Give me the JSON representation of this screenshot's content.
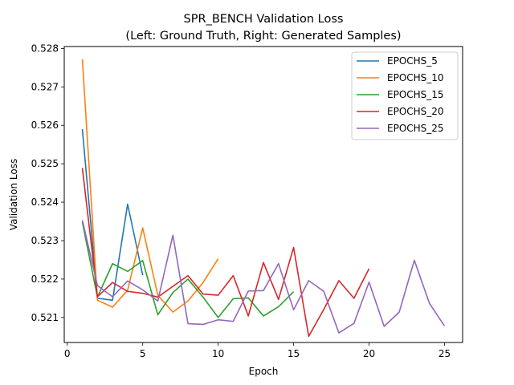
{
  "chart_data": {
    "type": "line",
    "title": "SPR_BENCH Validation Loss",
    "subtitle": "(Left: Ground Truth, Right: Generated Samples)",
    "xlabel": "Epoch",
    "ylabel": "Validation Loss",
    "xlim": [
      -0.2,
      26.2
    ],
    "ylim": [
      0.52035,
      0.52805
    ],
    "xticks": [
      0,
      5,
      10,
      15,
      20,
      25
    ],
    "yticks": [
      0.521,
      0.522,
      0.523,
      0.524,
      0.525,
      0.526,
      0.527,
      0.528
    ],
    "ytick_labels": [
      "0.521",
      "0.522",
      "0.523",
      "0.524",
      "0.525",
      "0.526",
      "0.527",
      "0.528"
    ],
    "grid": false,
    "legend_position": "top-right",
    "series": [
      {
        "name": "EPOCHS_5",
        "color": "#1f77b4",
        "x": [
          1,
          2,
          3,
          4,
          5
        ],
        "y": [
          0.5259,
          0.5215,
          0.52145,
          0.52395,
          0.5221
        ]
      },
      {
        "name": "EPOCHS_10",
        "color": "#ff7f0e",
        "x": [
          1,
          2,
          3,
          4,
          5,
          6,
          7,
          8,
          9,
          10
        ],
        "y": [
          0.52772,
          0.52145,
          0.52127,
          0.52171,
          0.52333,
          0.52158,
          0.52114,
          0.52143,
          0.52191,
          0.52253
        ]
      },
      {
        "name": "EPOCHS_15",
        "color": "#2ca02c",
        "x": [
          1,
          2,
          3,
          4,
          5,
          6,
          7,
          8,
          9,
          10,
          11,
          12,
          13,
          14,
          15
        ],
        "y": [
          0.52348,
          0.52153,
          0.5224,
          0.5222,
          0.52248,
          0.52107,
          0.52165,
          0.522,
          0.52153,
          0.521,
          0.52149,
          0.52151,
          0.52104,
          0.52128,
          0.52167
        ]
      },
      {
        "name": "EPOCHS_20",
        "color": "#d62728",
        "x": [
          1,
          2,
          3,
          4,
          5,
          6,
          7,
          8,
          9,
          10,
          11,
          12,
          13,
          14,
          15,
          16,
          17,
          18,
          19,
          20
        ],
        "y": [
          0.52489,
          0.52154,
          0.52191,
          0.52168,
          0.52163,
          0.52153,
          0.52181,
          0.52209,
          0.52161,
          0.52158,
          0.52209,
          0.52104,
          0.52243,
          0.52147,
          0.52282,
          0.52051,
          0.52121,
          0.52196,
          0.5215,
          0.52227
        ]
      },
      {
        "name": "EPOCHS_25",
        "color": "#9467bd",
        "x": [
          1,
          2,
          3,
          4,
          5,
          6,
          7,
          8,
          9,
          10,
          11,
          12,
          13,
          14,
          15,
          16,
          17,
          18,
          19,
          20,
          21,
          22,
          23,
          24,
          25
        ],
        "y": [
          0.52353,
          0.52183,
          0.52154,
          0.52195,
          0.52172,
          0.52143,
          0.52314,
          0.52084,
          0.52082,
          0.52094,
          0.5209,
          0.52169,
          0.5217,
          0.5224,
          0.5212,
          0.52196,
          0.52168,
          0.5206,
          0.52085,
          0.52192,
          0.52077,
          0.52114,
          0.52249,
          0.52137,
          0.52078
        ]
      }
    ]
  }
}
